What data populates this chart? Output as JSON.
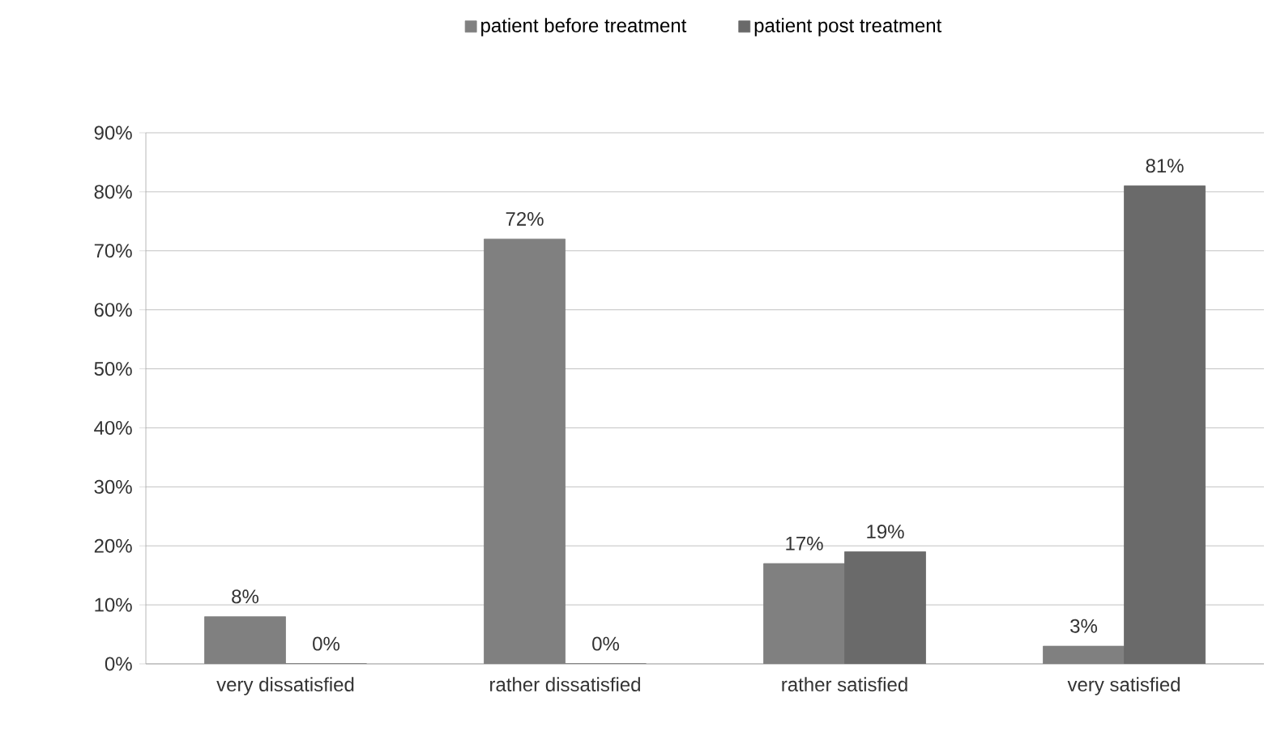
{
  "chart_data": {
    "type": "bar",
    "categories": [
      "very dissatisfied",
      "rather dissatisfied",
      "rather satisfied",
      "very satisfied"
    ],
    "series": [
      {
        "name": "patient before treatment",
        "color": "#808080",
        "values": [
          8,
          72,
          17,
          3
        ],
        "value_labels": [
          "8%",
          "72%",
          "17%",
          "3%"
        ]
      },
      {
        "name": "patient post treatment",
        "color": "#6a6a6a",
        "values": [
          0,
          0,
          19,
          81
        ],
        "value_labels": [
          "0%",
          "0%",
          "19%",
          "81%"
        ]
      }
    ],
    "ylim": [
      0,
      90
    ],
    "yticks": [
      {
        "value": 0,
        "label": "0%"
      },
      {
        "value": 10,
        "label": "10%"
      },
      {
        "value": 20,
        "label": "20%"
      },
      {
        "value": 30,
        "label": "30%"
      },
      {
        "value": 40,
        "label": "40%"
      },
      {
        "value": 50,
        "label": "50%"
      },
      {
        "value": 60,
        "label": "60%"
      },
      {
        "value": 70,
        "label": "70%"
      },
      {
        "value": 80,
        "label": "80%"
      },
      {
        "value": 90,
        "label": "90%"
      }
    ],
    "grid": "y",
    "legend": "top"
  }
}
